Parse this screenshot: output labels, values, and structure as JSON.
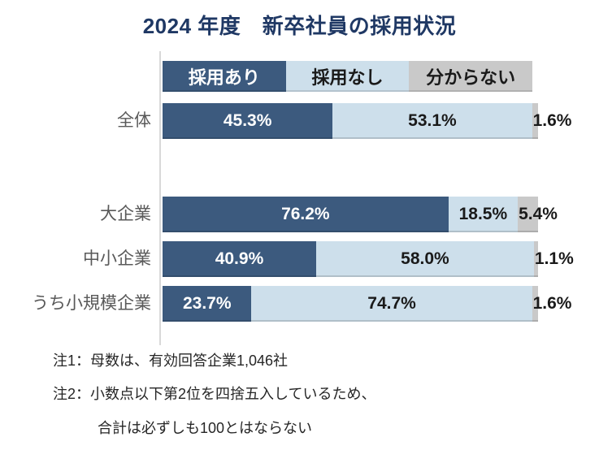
{
  "title": "2024 年度　新卒社員の採用状況",
  "colors": {
    "title": "#1F3864",
    "bar_dark": "#3C5A7E",
    "bar_light": "#CDDFEB",
    "bar_gray": "#C9C9C9",
    "axis_line": "#D9D9D9",
    "category_label": "#595959",
    "note_text": "#262626"
  },
  "chart_data": {
    "type": "bar",
    "orientation": "horizontal",
    "stacked": true,
    "unit": "%",
    "xlim": [
      0,
      100
    ],
    "grid": false,
    "legend_position": "top",
    "categories": [
      "全体",
      "大企業",
      "中小企業",
      "うち小規模企業"
    ],
    "series": [
      {
        "name": "採用あり",
        "values": [
          45.3,
          76.2,
          40.9,
          23.7
        ]
      },
      {
        "name": "採用なし",
        "values": [
          53.1,
          18.5,
          58.0,
          74.7
        ]
      },
      {
        "name": "分からない",
        "values": [
          1.6,
          5.4,
          1.1,
          1.6
        ]
      }
    ],
    "value_labels": [
      [
        "45.3%",
        "53.1%",
        "1.6%"
      ],
      [
        "76.2%",
        "18.5%",
        "5.4%"
      ],
      [
        "40.9%",
        "58.0%",
        "1.1%"
      ],
      [
        "23.7%",
        "74.7%",
        "1.6%"
      ]
    ]
  },
  "notes": [
    "注1：母数は、有効回答企業1,046社",
    "注2：小数点以下第2位を四捨五入しているため、",
    "合計は必ずしも100とはならない"
  ]
}
